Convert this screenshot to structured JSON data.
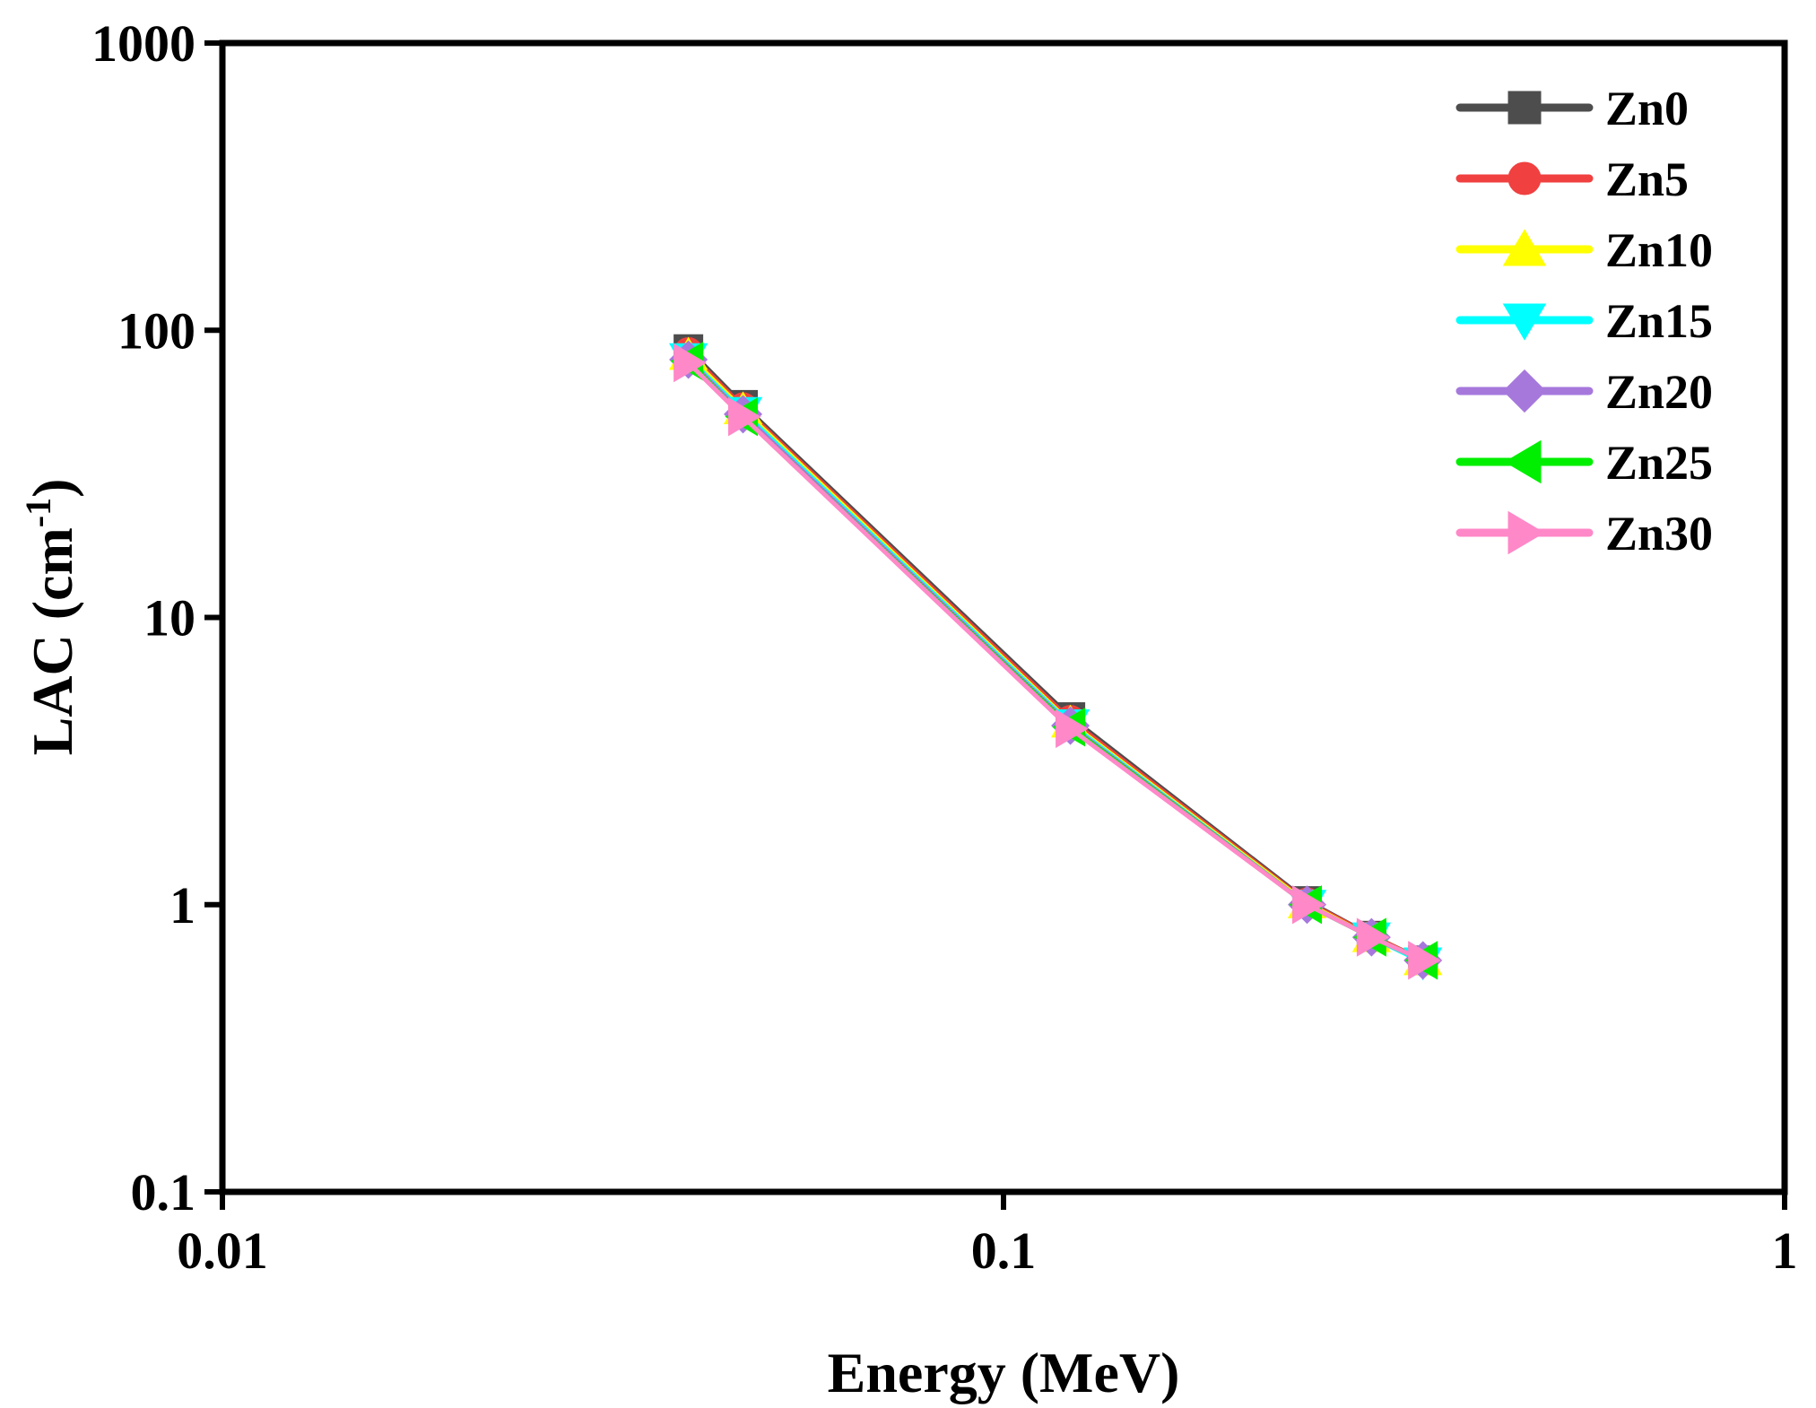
{
  "chart_data": {
    "type": "line",
    "xscale": "log",
    "yscale": "log",
    "xlim": [
      0.01,
      1
    ],
    "ylim": [
      0.1,
      1000
    ],
    "xlabel": "Energy (MeV)",
    "ylabel_main": "LAC (cm",
    "ylabel_sup": "-1",
    "ylabel_close": ")",
    "xticks": [
      {
        "value": 0.01,
        "label": "0.01"
      },
      {
        "value": 0.1,
        "label": "0.1"
      },
      {
        "value": 1,
        "label": "1"
      }
    ],
    "yticks": [
      {
        "value": 0.1,
        "label": "0.1"
      },
      {
        "value": 1,
        "label": "1"
      },
      {
        "value": 10,
        "label": "10"
      },
      {
        "value": 100,
        "label": "100"
      },
      {
        "value": 1000,
        "label": "1000"
      }
    ],
    "grid": false,
    "legend_position": "top-right",
    "x": [
      0.0395,
      0.0464,
      0.1218,
      0.2447,
      0.2959,
      0.3443
    ],
    "series": [
      {
        "name": "Zn0",
        "color": "#4d4d4d",
        "marker": "square",
        "values": [
          86,
          55,
          4.5,
          1.03,
          0.78,
          0.64
        ]
      },
      {
        "name": "Zn5",
        "color": "#f04040",
        "marker": "circle",
        "values": [
          84,
          54,
          4.4,
          1.02,
          0.78,
          0.64
        ]
      },
      {
        "name": "Zn10",
        "color": "#ffff00",
        "marker": "triangle-up",
        "values": [
          82,
          53,
          4.3,
          1.01,
          0.77,
          0.64
        ]
      },
      {
        "name": "Zn15",
        "color": "#00ffff",
        "marker": "triangle-down",
        "values": [
          80,
          52,
          4.25,
          1.0,
          0.77,
          0.63
        ]
      },
      {
        "name": "Zn20",
        "color": "#a678dc",
        "marker": "diamond",
        "values": [
          79,
          51,
          4.2,
          1.0,
          0.77,
          0.64
        ]
      },
      {
        "name": "Zn25",
        "color": "#00ee00",
        "marker": "triangle-left",
        "values": [
          78,
          50,
          4.15,
          1.0,
          0.77,
          0.64
        ]
      },
      {
        "name": "Zn30",
        "color": "#ff88c8",
        "marker": "triangle-right",
        "values": [
          77,
          50,
          4.1,
          1.0,
          0.77,
          0.64
        ]
      }
    ]
  }
}
